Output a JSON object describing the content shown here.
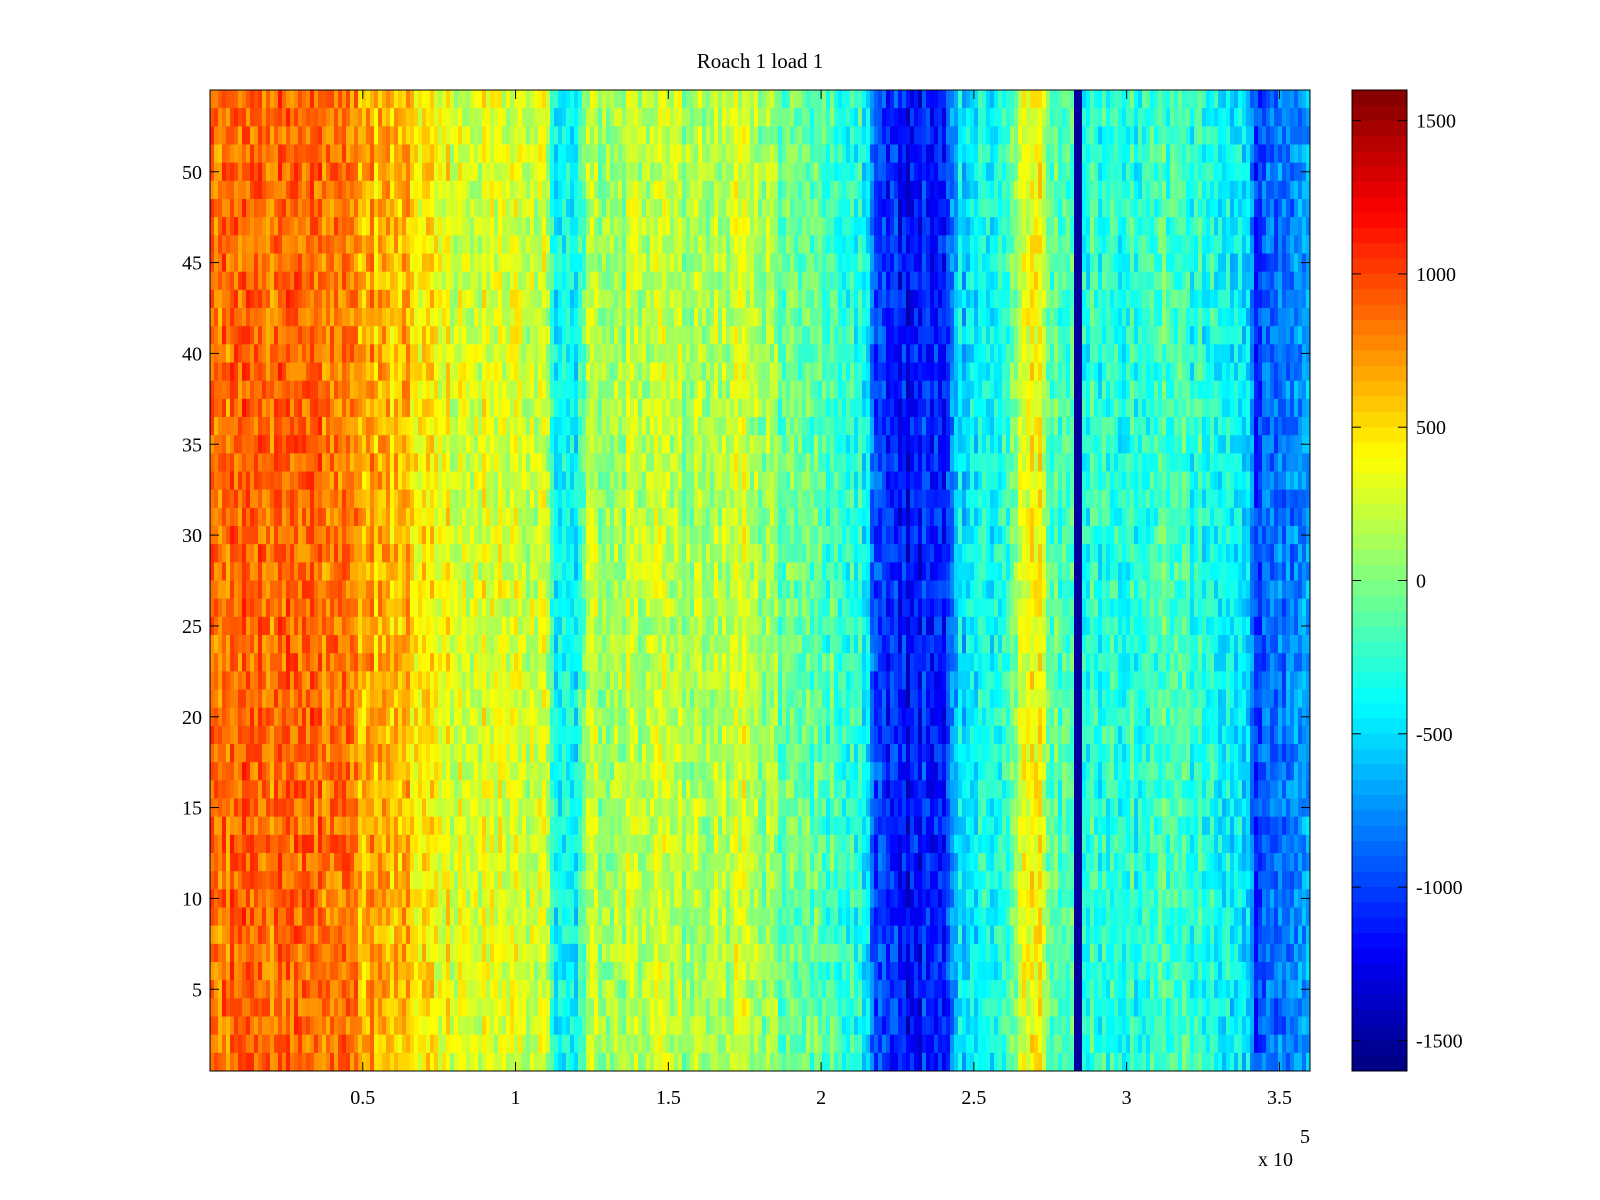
{
  "chart_data": {
    "type": "heatmap",
    "title": "Roach 1 load 1",
    "xlabel": "",
    "ylabel": "",
    "x_multiplier_label": "x 10",
    "x_multiplier_exponent": "5",
    "xlim": [
      0,
      3.6
    ],
    "ylim": [
      0.5,
      54.5
    ],
    "x_ticks": [
      {
        "value": 0.5,
        "label": "0.5"
      },
      {
        "value": 1,
        "label": "1"
      },
      {
        "value": 1.5,
        "label": "1.5"
      },
      {
        "value": 2,
        "label": "2"
      },
      {
        "value": 2.5,
        "label": "2.5"
      },
      {
        "value": 3,
        "label": "3"
      },
      {
        "value": 3.5,
        "label": "3.5"
      }
    ],
    "y_ticks": [
      {
        "value": 5,
        "label": "5"
      },
      {
        "value": 10,
        "label": "10"
      },
      {
        "value": 15,
        "label": "15"
      },
      {
        "value": 20,
        "label": "20"
      },
      {
        "value": 25,
        "label": "25"
      },
      {
        "value": 30,
        "label": "30"
      },
      {
        "value": 35,
        "label": "35"
      },
      {
        "value": 40,
        "label": "40"
      },
      {
        "value": 45,
        "label": "45"
      },
      {
        "value": 50,
        "label": "50"
      }
    ],
    "colorbar": {
      "colormap": "jet",
      "range": [
        -1600,
        1600
      ],
      "ticks": [
        {
          "value": 1500,
          "label": "1500"
        },
        {
          "value": 1000,
          "label": "1000"
        },
        {
          "value": 500,
          "label": "500"
        },
        {
          "value": 0,
          "label": "0"
        },
        {
          "value": -500,
          "label": "-500"
        },
        {
          "value": -1000,
          "label": "-1000"
        },
        {
          "value": -1500,
          "label": "-1500"
        }
      ]
    },
    "rows": 54,
    "column_profile": [
      {
        "x": 0.0,
        "value": 850
      },
      {
        "x": 0.1,
        "value": 850
      },
      {
        "x": 0.2,
        "value": 800
      },
      {
        "x": 0.35,
        "value": 900
      },
      {
        "x": 0.5,
        "value": 720
      },
      {
        "x": 0.65,
        "value": 550
      },
      {
        "x": 0.75,
        "value": 380
      },
      {
        "x": 0.85,
        "value": 280
      },
      {
        "x": 1.0,
        "value": 320
      },
      {
        "x": 1.1,
        "value": 200
      },
      {
        "x": 1.13,
        "value": -450
      },
      {
        "x": 1.2,
        "value": -500
      },
      {
        "x": 1.23,
        "value": 120
      },
      {
        "x": 1.4,
        "value": 170
      },
      {
        "x": 1.6,
        "value": 130
      },
      {
        "x": 1.75,
        "value": 230
      },
      {
        "x": 1.8,
        "value": 80
      },
      {
        "x": 1.9,
        "value": -80
      },
      {
        "x": 2.05,
        "value": -180
      },
      {
        "x": 2.15,
        "value": -350
      },
      {
        "x": 2.18,
        "value": -1050
      },
      {
        "x": 2.3,
        "value": -1200
      },
      {
        "x": 2.42,
        "value": -1000
      },
      {
        "x": 2.45,
        "value": -500
      },
      {
        "x": 2.55,
        "value": -350
      },
      {
        "x": 2.62,
        "value": -200
      },
      {
        "x": 2.66,
        "value": 450
      },
      {
        "x": 2.72,
        "value": 400
      },
      {
        "x": 2.75,
        "value": -100
      },
      {
        "x": 2.83,
        "value": -250
      },
      {
        "x": 2.84,
        "value": -1500
      },
      {
        "x": 2.85,
        "value": -250
      },
      {
        "x": 2.95,
        "value": -300
      },
      {
        "x": 3.1,
        "value": -200
      },
      {
        "x": 3.25,
        "value": -300
      },
      {
        "x": 3.4,
        "value": -400
      },
      {
        "x": 3.42,
        "value": -1000
      },
      {
        "x": 3.5,
        "value": -850
      },
      {
        "x": 3.6,
        "value": -750
      }
    ]
  }
}
